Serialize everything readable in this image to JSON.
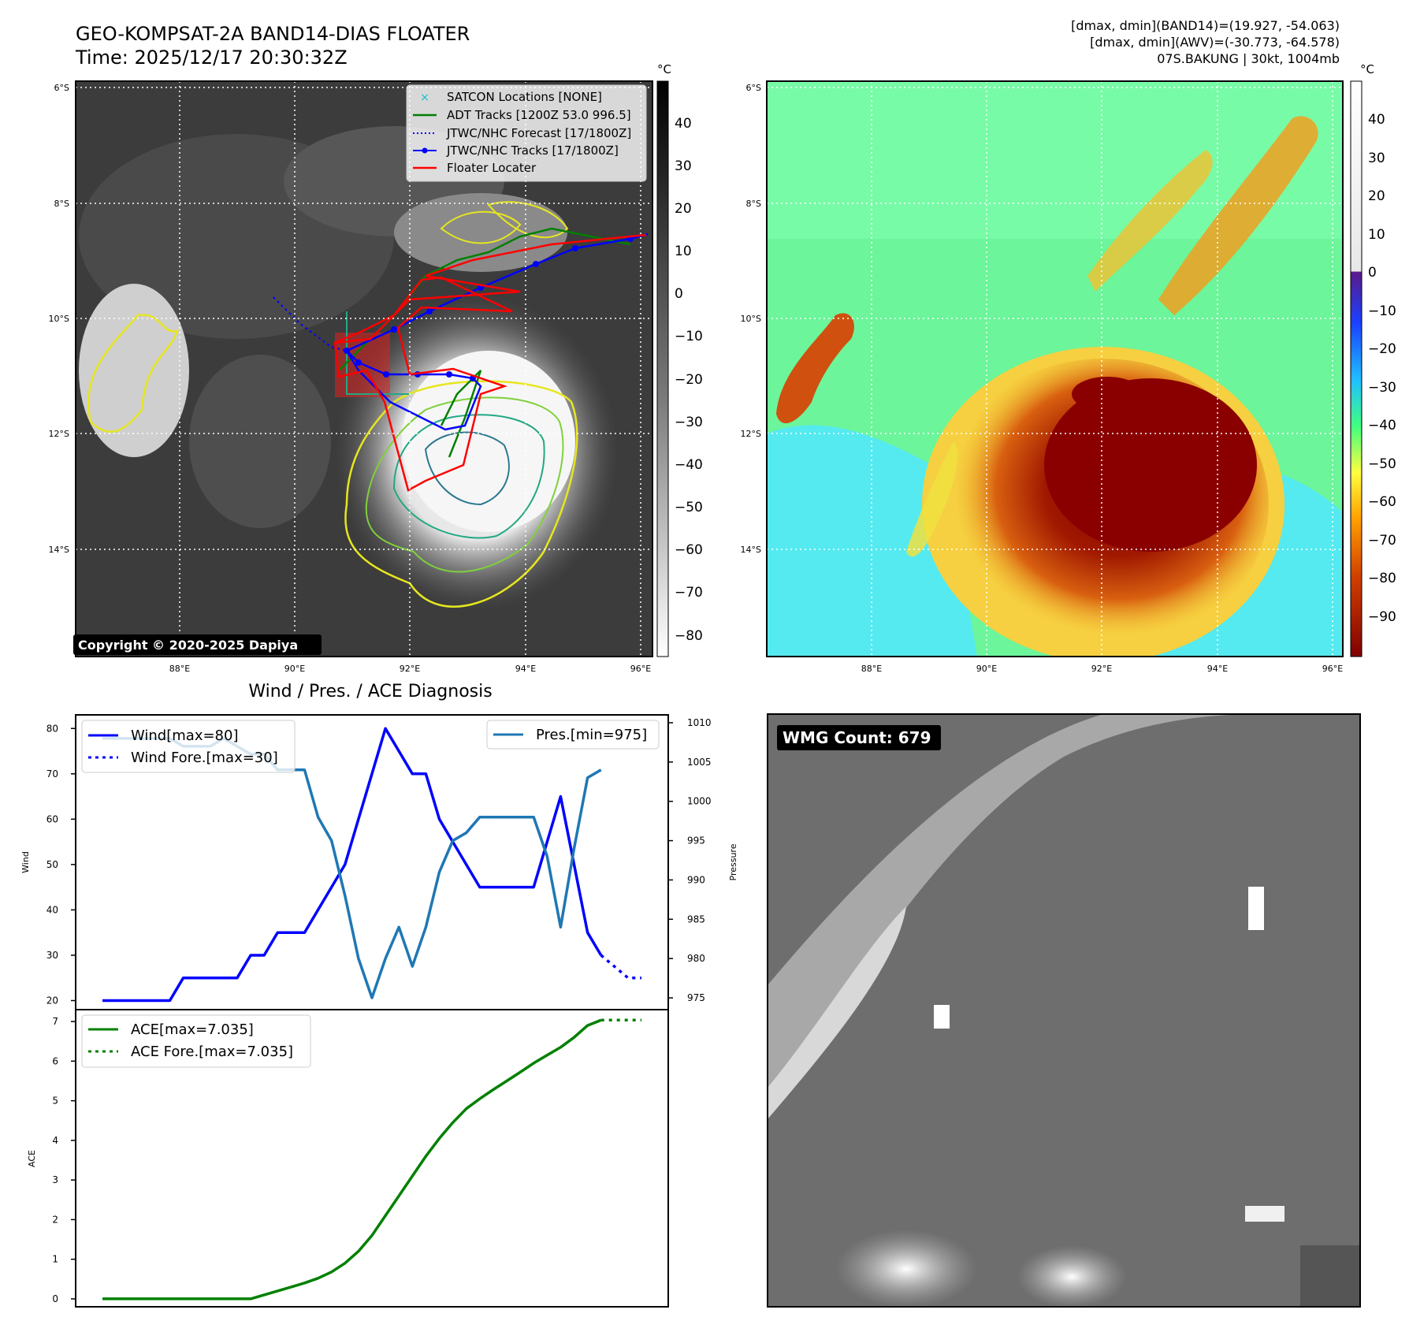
{
  "header": {
    "title": "GEO-KOMPSAT-2A BAND14-DIAS FLOATER",
    "time": "Time: 2025/12/17 20:30:32Z",
    "band14_range": "[dmax, dmin](BAND14)=(19.927, -54.063)",
    "awv_range": "[dmax, dmin](AWV)=(-30.773, -64.578)",
    "storm_info": "07S.BAKUNG | 30kt, 1004mb"
  },
  "maps": {
    "lat_ticks": [
      "6°S",
      "8°S",
      "10°S",
      "12°S",
      "14°S"
    ],
    "lon_ticks": [
      "88°E",
      "90°E",
      "92°E",
      "94°E",
      "96°E"
    ],
    "copyright": "Copyright © 2020-2025 Dapiya",
    "colorbar_unit": "°C",
    "left_colorbar_ticks": [
      "40",
      "30",
      "20",
      "10",
      "0",
      "−10",
      "−20",
      "−30",
      "−40",
      "−50",
      "−60",
      "−70",
      "−80"
    ],
    "right_colorbar_ticks": [
      "40",
      "30",
      "20",
      "10",
      "0",
      "−10",
      "−20",
      "−30",
      "−40",
      "−50",
      "−60",
      "−70",
      "−80",
      "−90"
    ],
    "legend": [
      {
        "label": "SATCON Locations [NONE]",
        "color": "#17becf",
        "style": "x"
      },
      {
        "label": "ADT Tracks [1200Z 53.0 996.5]",
        "color": "#008000",
        "style": "solid"
      },
      {
        "label": "JTWC/NHC Forecast [17/1800Z]",
        "color": "#0000ff",
        "style": "dotted"
      },
      {
        "label": "JTWC/NHC Tracks [17/1800Z]",
        "color": "#0000ff",
        "style": "dot-line"
      },
      {
        "label": "Floater Locater",
        "color": "#ff0000",
        "style": "solid"
      }
    ]
  },
  "wmg": {
    "label": "WMG Count: 679"
  },
  "chart_data": [
    {
      "type": "line",
      "title": "Wind / Pres. / ACE Diagnosis",
      "ylabel": "Wind",
      "y2label": "Pressure",
      "ylim": [
        18,
        83
      ],
      "y2lim": [
        973.5,
        1011
      ],
      "yticks": [
        20,
        30,
        40,
        50,
        60,
        70,
        80
      ],
      "y2ticks": [
        975,
        980,
        985,
        990,
        995,
        1000,
        1005,
        1010
      ],
      "x": [
        0,
        1,
        2,
        3,
        4,
        5,
        6,
        7,
        8,
        9,
        10,
        11,
        12,
        13,
        14,
        15,
        16,
        17,
        18,
        19,
        20,
        21,
        22,
        23,
        24,
        25,
        26,
        27,
        28,
        29,
        30,
        31,
        32,
        33,
        34,
        35,
        36,
        37,
        38,
        39,
        40
      ],
      "series": [
        {
          "name": "Wind[max=80]",
          "axis": "left",
          "color": "#0000ff",
          "style": "solid",
          "x": [
            0,
            1,
            2,
            3,
            4,
            5,
            6,
            7,
            8,
            9,
            10,
            11,
            12,
            13,
            14,
            15,
            16,
            17,
            18,
            19,
            20,
            21,
            22,
            23,
            24,
            25,
            26,
            27,
            28,
            29,
            30,
            31,
            32,
            33,
            34,
            35,
            36,
            37
          ],
          "values": [
            20,
            20,
            20,
            20,
            20,
            20,
            25,
            25,
            25,
            25,
            25,
            30,
            30,
            35,
            35,
            35,
            40,
            45,
            50,
            60,
            70,
            80,
            75,
            70,
            70,
            60,
            55,
            50,
            45,
            45,
            45,
            45,
            45,
            55,
            65,
            50,
            35,
            30
          ]
        },
        {
          "name": "Wind Fore.[max=30]",
          "axis": "left",
          "color": "#0000ff",
          "style": "dotted",
          "x": [
            37,
            38,
            39,
            40
          ],
          "values": [
            30,
            27.5,
            25,
            25
          ]
        },
        {
          "name": "Pres.[min=975]",
          "axis": "right",
          "color": "#1f77b4",
          "style": "solid",
          "x": [
            0,
            1,
            2,
            3,
            4,
            5,
            6,
            7,
            8,
            9,
            10,
            11,
            12,
            13,
            14,
            15,
            16,
            17,
            18,
            19,
            20,
            21,
            22,
            23,
            24,
            25,
            26,
            27,
            28,
            29,
            30,
            31,
            32,
            33,
            34,
            35,
            36,
            37
          ],
          "values": [
            1008,
            1008,
            1008,
            1008,
            1008,
            1008,
            1007,
            1007,
            1007,
            1008,
            1007,
            1006,
            1006,
            1004,
            1004,
            1004,
            998,
            995,
            988,
            980,
            975,
            980,
            984,
            979,
            984,
            991,
            995,
            996,
            998,
            998,
            998,
            998,
            998,
            993,
            984,
            994,
            1003,
            1004
          ]
        }
      ]
    },
    {
      "type": "line",
      "ylabel": "ACE",
      "ylim": [
        -0.2,
        7.3
      ],
      "yticks": [
        0,
        1,
        2,
        3,
        4,
        5,
        6,
        7
      ],
      "x": [
        0,
        1,
        2,
        3,
        4,
        5,
        6,
        7,
        8,
        9,
        10,
        11,
        12,
        13,
        14,
        15,
        16,
        17,
        18,
        19,
        20,
        21,
        22,
        23,
        24,
        25,
        26,
        27,
        28,
        29,
        30,
        31,
        32,
        33,
        34,
        35,
        36,
        37,
        38,
        39,
        40
      ],
      "series": [
        {
          "name": "ACE[max=7.035]",
          "color": "#008000",
          "style": "solid",
          "x": [
            0,
            1,
            2,
            3,
            4,
            5,
            6,
            7,
            8,
            9,
            10,
            11,
            12,
            13,
            14,
            15,
            16,
            17,
            18,
            19,
            20,
            21,
            22,
            23,
            24,
            25,
            26,
            27,
            28,
            29,
            30,
            31,
            32,
            33,
            34,
            35,
            36,
            37
          ],
          "values": [
            0,
            0,
            0,
            0,
            0,
            0,
            0,
            0,
            0,
            0,
            0,
            0,
            0.1,
            0.2,
            0.3,
            0.4,
            0.52,
            0.68,
            0.9,
            1.2,
            1.6,
            2.1,
            2.6,
            3.1,
            3.6,
            4.05,
            4.45,
            4.8,
            5.05,
            5.28,
            5.5,
            5.72,
            5.95,
            6.15,
            6.35,
            6.6,
            6.9,
            7.035
          ]
        },
        {
          "name": "ACE Fore.[max=7.035]",
          "color": "#008000",
          "style": "dotted",
          "x": [
            37,
            38,
            39,
            40
          ],
          "values": [
            7.035,
            7.035,
            7.035,
            7.035
          ]
        }
      ]
    }
  ]
}
